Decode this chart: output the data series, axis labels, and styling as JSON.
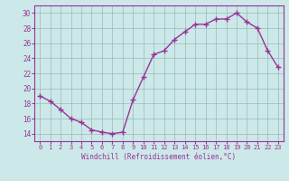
{
  "x": [
    0,
    1,
    2,
    3,
    4,
    5,
    6,
    7,
    8,
    9,
    10,
    11,
    12,
    13,
    14,
    15,
    16,
    17,
    18,
    19,
    20,
    21,
    22,
    23
  ],
  "y": [
    19.0,
    18.3,
    17.2,
    16.0,
    15.5,
    14.5,
    14.2,
    14.0,
    14.2,
    18.5,
    21.5,
    24.5,
    25.0,
    26.5,
    27.5,
    28.5,
    28.5,
    29.2,
    29.2,
    30.0,
    28.8,
    28.0,
    25.0,
    22.8
  ],
  "xlabel": "Windchill (Refroidissement éolien,°C)",
  "xlim": [
    -0.5,
    23.5
  ],
  "ylim": [
    13.0,
    31.0
  ],
  "yticks": [
    14,
    16,
    18,
    20,
    22,
    24,
    26,
    28,
    30
  ],
  "xticks": [
    0,
    1,
    2,
    3,
    4,
    5,
    6,
    7,
    8,
    9,
    10,
    11,
    12,
    13,
    14,
    15,
    16,
    17,
    18,
    19,
    20,
    21,
    22,
    23
  ],
  "line_color": "#993399",
  "marker_color": "#993399",
  "bg_color": "#cce8e8",
  "grid_color": "#99bbbb",
  "tick_color": "#993399",
  "label_color": "#993399",
  "marker": "+",
  "markersize": 4,
  "linewidth": 1.0
}
